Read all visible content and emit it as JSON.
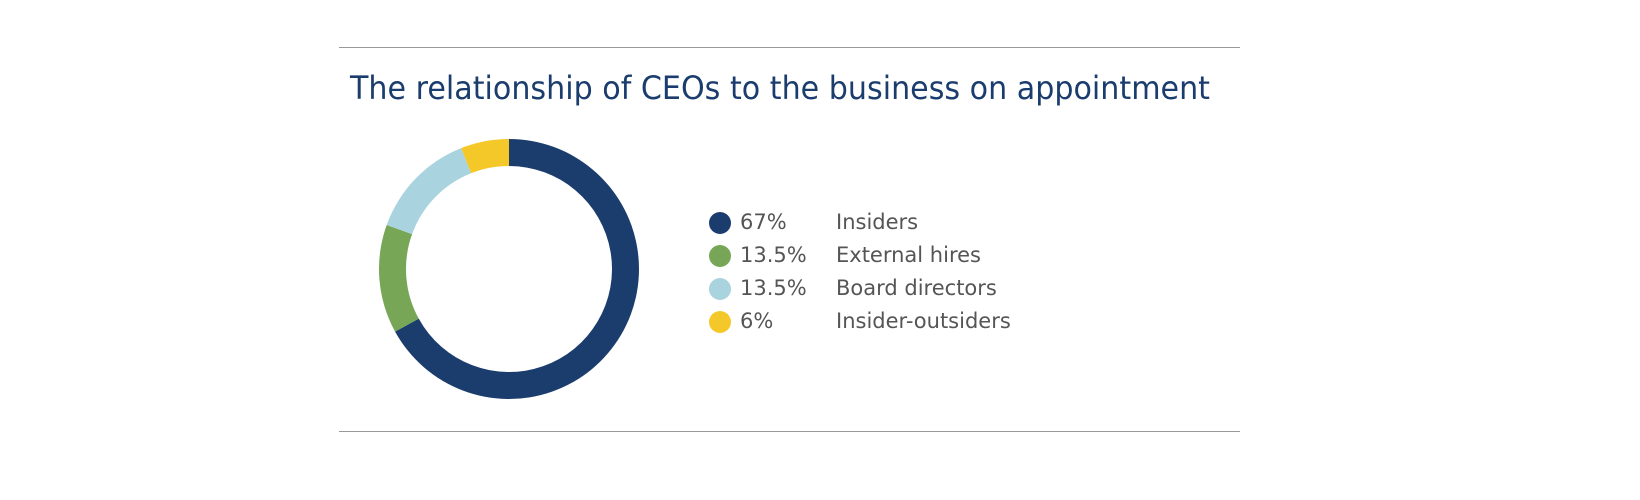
{
  "chart_data": {
    "type": "donut",
    "title": "The relationship of CEOs to the business on appointment",
    "categories": [
      "Insiders",
      "External hires",
      "Board directors",
      "Insider-outsiders"
    ],
    "values": [
      67,
      13.5,
      13.5,
      6
    ],
    "value_labels": [
      "67%",
      "13.5%",
      "13.5%",
      "6%"
    ],
    "colors": [
      "#1b3d6e",
      "#78a657",
      "#a8d3df",
      "#f5c82a"
    ]
  }
}
